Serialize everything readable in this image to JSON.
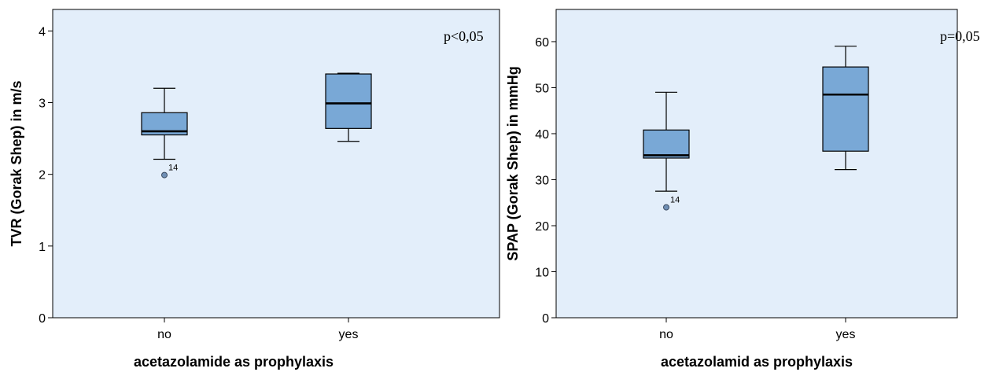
{
  "chart_data": [
    {
      "type": "box",
      "title": "",
      "xlabel": "acetazolamide as prophylaxis",
      "ylabel": "TVR (Gorak Shep) in m/s",
      "ylim": [
        0,
        4.3
      ],
      "yticks": [
        0,
        1,
        2,
        3,
        4
      ],
      "annotation": "p<0,05",
      "grid": false,
      "plot_bg": "#e3eefa",
      "box_color": "#79a8d6",
      "categories": [
        "no",
        "yes"
      ],
      "boxes": [
        {
          "category": "no",
          "whisker_low": 2.21,
          "q1": 2.55,
          "median": 2.6,
          "q3": 2.86,
          "whisker_high": 3.2,
          "outliers": [
            {
              "value": 1.99,
              "label": "14"
            }
          ]
        },
        {
          "category": "yes",
          "whisker_low": 2.46,
          "q1": 2.64,
          "median": 2.99,
          "q3": 3.4,
          "whisker_high": 3.41,
          "outliers": []
        }
      ]
    },
    {
      "type": "box",
      "title": "",
      "xlabel": "acetazolamid as prophylaxis",
      "ylabel": "SPAP (Gorak Shep) in mmHg",
      "ylim": [
        0,
        67
      ],
      "yticks": [
        0,
        10,
        20,
        30,
        40,
        50,
        60
      ],
      "annotation": "p=0,05",
      "grid": false,
      "plot_bg": "#e3eefa",
      "box_color": "#79a8d6",
      "categories": [
        "no",
        "yes"
      ],
      "boxes": [
        {
          "category": "no",
          "whisker_low": 27.5,
          "q1": 34.7,
          "median": 35.3,
          "q3": 40.8,
          "whisker_high": 49,
          "outliers": [
            {
              "value": 24,
              "label": "14"
            }
          ]
        },
        {
          "category": "yes",
          "whisker_low": 32.2,
          "q1": 36.2,
          "median": 48.5,
          "q3": 54.5,
          "whisker_high": 59,
          "outliers": []
        }
      ]
    }
  ]
}
